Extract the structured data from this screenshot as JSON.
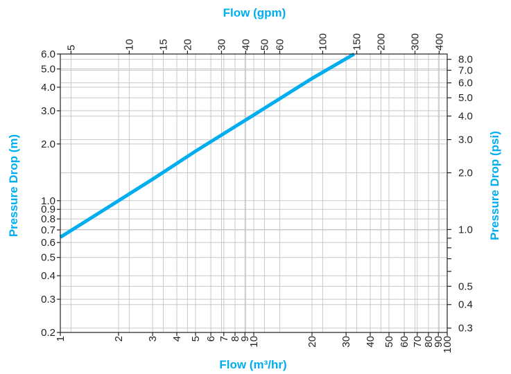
{
  "chart_data": {
    "type": "line",
    "title": "",
    "xlabel_top": "Flow (gpm)",
    "xlabel_bottom": "Flow (m³/hr)",
    "ylabel_left": "Pressure Drop (m)",
    "ylabel_right": "Pressure Drop (psi)",
    "x_scale": "log",
    "y_scale": "log",
    "xlim": [
      1,
      100
    ],
    "ylim": [
      0.2,
      6.0
    ],
    "grid": true,
    "color": "#00aeef",
    "x_ticks_bottom": [
      {
        "v": 1,
        "label": "1"
      },
      {
        "v": 2,
        "label": "2"
      },
      {
        "v": 3,
        "label": "3"
      },
      {
        "v": 4,
        "label": "4"
      },
      {
        "v": 5,
        "label": "5"
      },
      {
        "v": 6,
        "label": "6"
      },
      {
        "v": 7,
        "label": "7"
      },
      {
        "v": 8,
        "label": "8"
      },
      {
        "v": 9,
        "label": "9"
      },
      {
        "v": 10,
        "label": "10"
      },
      {
        "v": 20,
        "label": "20"
      },
      {
        "v": 30,
        "label": "30"
      },
      {
        "v": 40,
        "label": "40"
      },
      {
        "v": 50,
        "label": "50"
      },
      {
        "v": 60,
        "label": "60"
      },
      {
        "v": 70,
        "label": "70"
      },
      {
        "v": 80,
        "label": "80"
      },
      {
        "v": 90,
        "label": "90"
      },
      {
        "v": 100,
        "label": "100"
      }
    ],
    "x_ticks_top": [
      {
        "v": 5,
        "label": "5"
      },
      {
        "v": 10,
        "label": "10"
      },
      {
        "v": 15,
        "label": "15"
      },
      {
        "v": 20,
        "label": "20"
      },
      {
        "v": 30,
        "label": "30"
      },
      {
        "v": 40,
        "label": "40"
      },
      {
        "v": 50,
        "label": "50"
      },
      {
        "v": 60,
        "label": "60"
      },
      {
        "v": 100,
        "label": "100"
      },
      {
        "v": 150,
        "label": "150"
      },
      {
        "v": 200,
        "label": "200"
      },
      {
        "v": 300,
        "label": "300"
      },
      {
        "v": 400,
        "label": "400"
      }
    ],
    "y_ticks_left": [
      {
        "v": 0.2,
        "label": "0.2"
      },
      {
        "v": 0.3,
        "label": "0.3"
      },
      {
        "v": 0.4,
        "label": "0.4"
      },
      {
        "v": 0.5,
        "label": "0.5"
      },
      {
        "v": 0.6,
        "label": "0.6"
      },
      {
        "v": 0.7,
        "label": "0.7"
      },
      {
        "v": 0.8,
        "label": "0.8"
      },
      {
        "v": 0.9,
        "label": "0.9"
      },
      {
        "v": 1.0,
        "label": "1.0"
      },
      {
        "v": 2.0,
        "label": "2.0"
      },
      {
        "v": 3.0,
        "label": "3.0"
      },
      {
        "v": 4.0,
        "label": "4.0"
      },
      {
        "v": 5.0,
        "label": "5.0"
      },
      {
        "v": 6.0,
        "label": "6.0"
      }
    ],
    "y_ticks_right": [
      {
        "v": 0.3,
        "label": "0.3"
      },
      {
        "v": 0.4,
        "label": "0.4"
      },
      {
        "v": 0.5,
        "label": "0.5"
      },
      {
        "v": 1.0,
        "label": "1.0"
      },
      {
        "v": 2.0,
        "label": "2.0"
      },
      {
        "v": 3.0,
        "label": "3.0"
      },
      {
        "v": 4.0,
        "label": "4.0"
      },
      {
        "v": 5.0,
        "label": "5.0"
      },
      {
        "v": 6.0,
        "label": "6.0"
      },
      {
        "v": 7.0,
        "label": "7.0"
      },
      {
        "v": 8.0,
        "label": "8.0"
      }
    ],
    "series": [
      {
        "x_m3hr": [
          1,
          2,
          3,
          5,
          10,
          20,
          33
        ],
        "y_m": [
          0.64,
          1.0,
          1.3,
          1.83,
          2.85,
          4.45,
          6.0
        ]
      }
    ]
  }
}
